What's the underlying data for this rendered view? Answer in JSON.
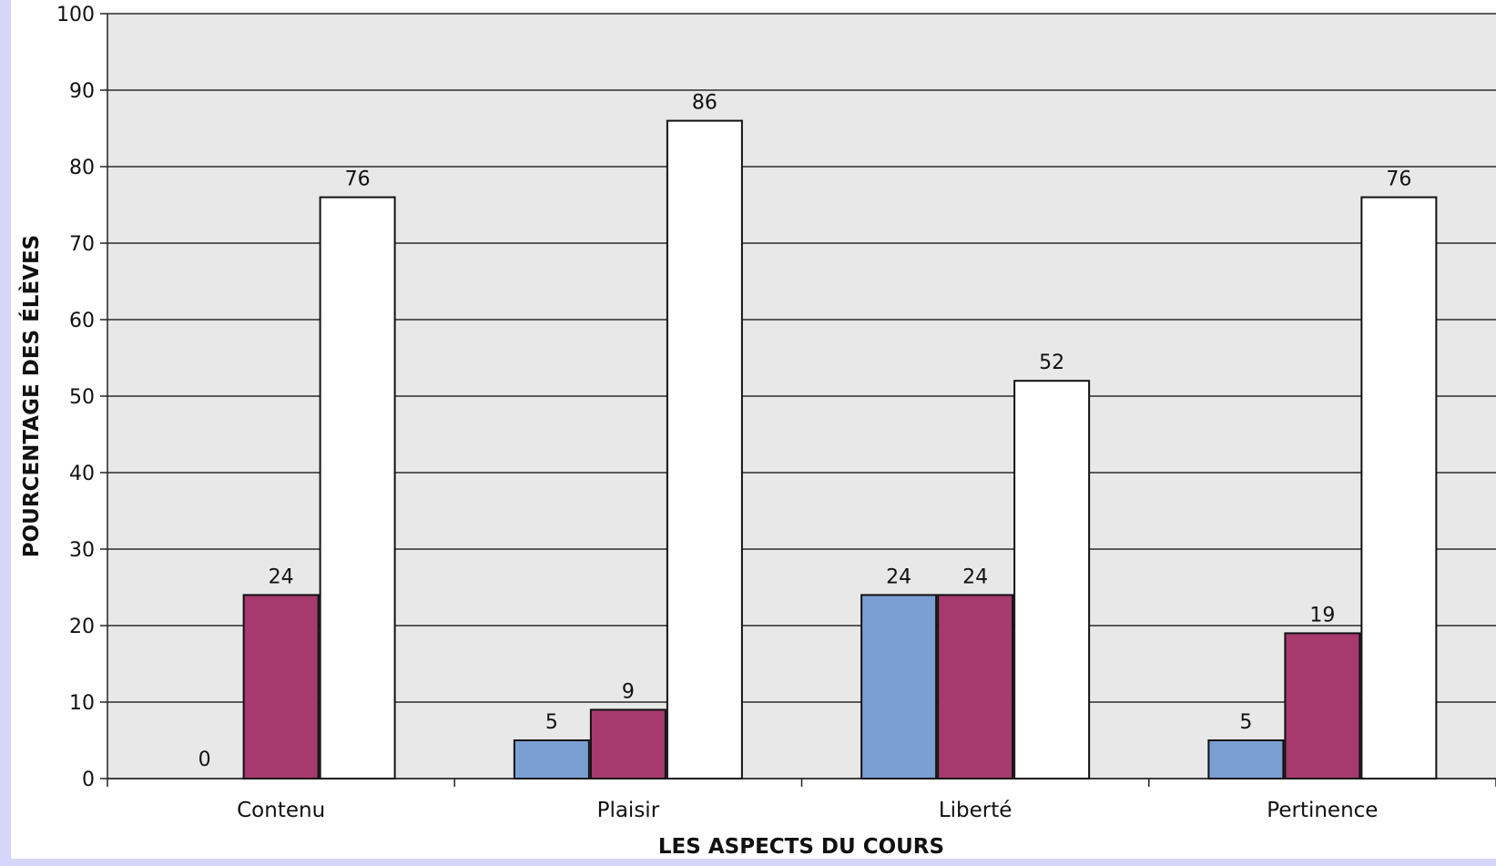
{
  "chart_data": {
    "type": "bar",
    "xlabel": "LES ASPECTS DU COURS",
    "ylabel": "POURCENTAGE DES  ÉLÈVES",
    "ylim": [
      0,
      100
    ],
    "yticks": [
      0,
      10,
      20,
      30,
      40,
      50,
      60,
      70,
      80,
      90,
      100
    ],
    "categories": [
      "Contenu",
      "Plaisir",
      "Liberté",
      "Pertinence"
    ],
    "series": [
      {
        "values": [
          0,
          5,
          24,
          5
        ],
        "color": "#7b9fd3"
      },
      {
        "values": [
          24,
          9,
          24,
          19
        ],
        "color": "#a63a6e"
      },
      {
        "values": [
          76,
          86,
          52,
          76
        ],
        "color": "#ffffff"
      }
    ],
    "plot_background": "#e8e8e8",
    "grid": true,
    "legend": "none"
  }
}
